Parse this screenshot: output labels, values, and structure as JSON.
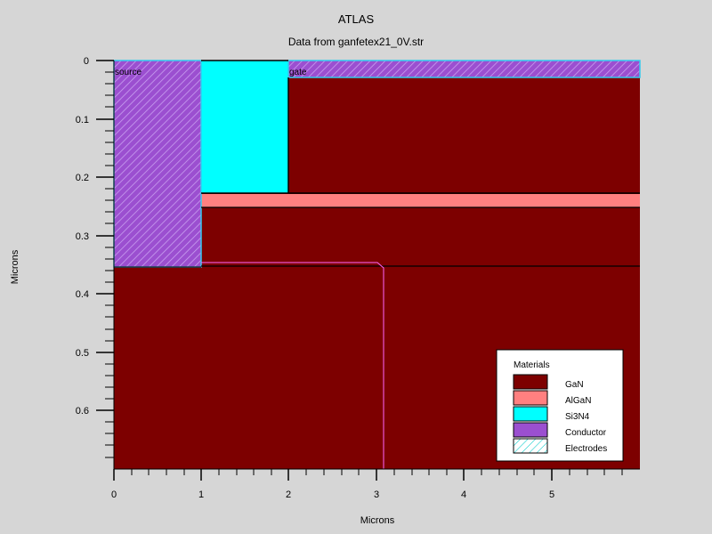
{
  "header": {
    "title": "ATLAS",
    "subtitle": "Data from ganfetex21_0V.str"
  },
  "axes": {
    "xlabel": "Microns",
    "ylabel": "Microns",
    "xlim": [
      0,
      6
    ],
    "ylim": [
      0,
      0.7
    ],
    "xticks": [
      "0",
      "1",
      "2",
      "3",
      "4",
      "5"
    ],
    "yticks": [
      "0",
      "0.1",
      "0.2",
      "0.3",
      "0.4",
      "0.5",
      "0.6"
    ]
  },
  "electrode_labels": {
    "source": "source",
    "gate": "gate"
  },
  "legend": {
    "title": "Materials",
    "items": [
      {
        "label": "GaN",
        "color": "#7d0000",
        "pattern": "solid"
      },
      {
        "label": "AlGaN",
        "color": "#ff8080",
        "pattern": "solid"
      },
      {
        "label": "Si3N4",
        "color": "#00ffff",
        "pattern": "solid"
      },
      {
        "label": "Conductor",
        "color": "#9b4fd0",
        "pattern": "solid"
      },
      {
        "label": "Electrodes",
        "color": "#00c8c8",
        "pattern": "hatch"
      }
    ]
  },
  "colors": {
    "GaN": "#7d0000",
    "AlGaN": "#ff8080",
    "Si3N4": "#00ffff",
    "Conductor": "#9b4fd0",
    "electrode_border": "#33ccee",
    "junction": "#ff66ff"
  }
}
